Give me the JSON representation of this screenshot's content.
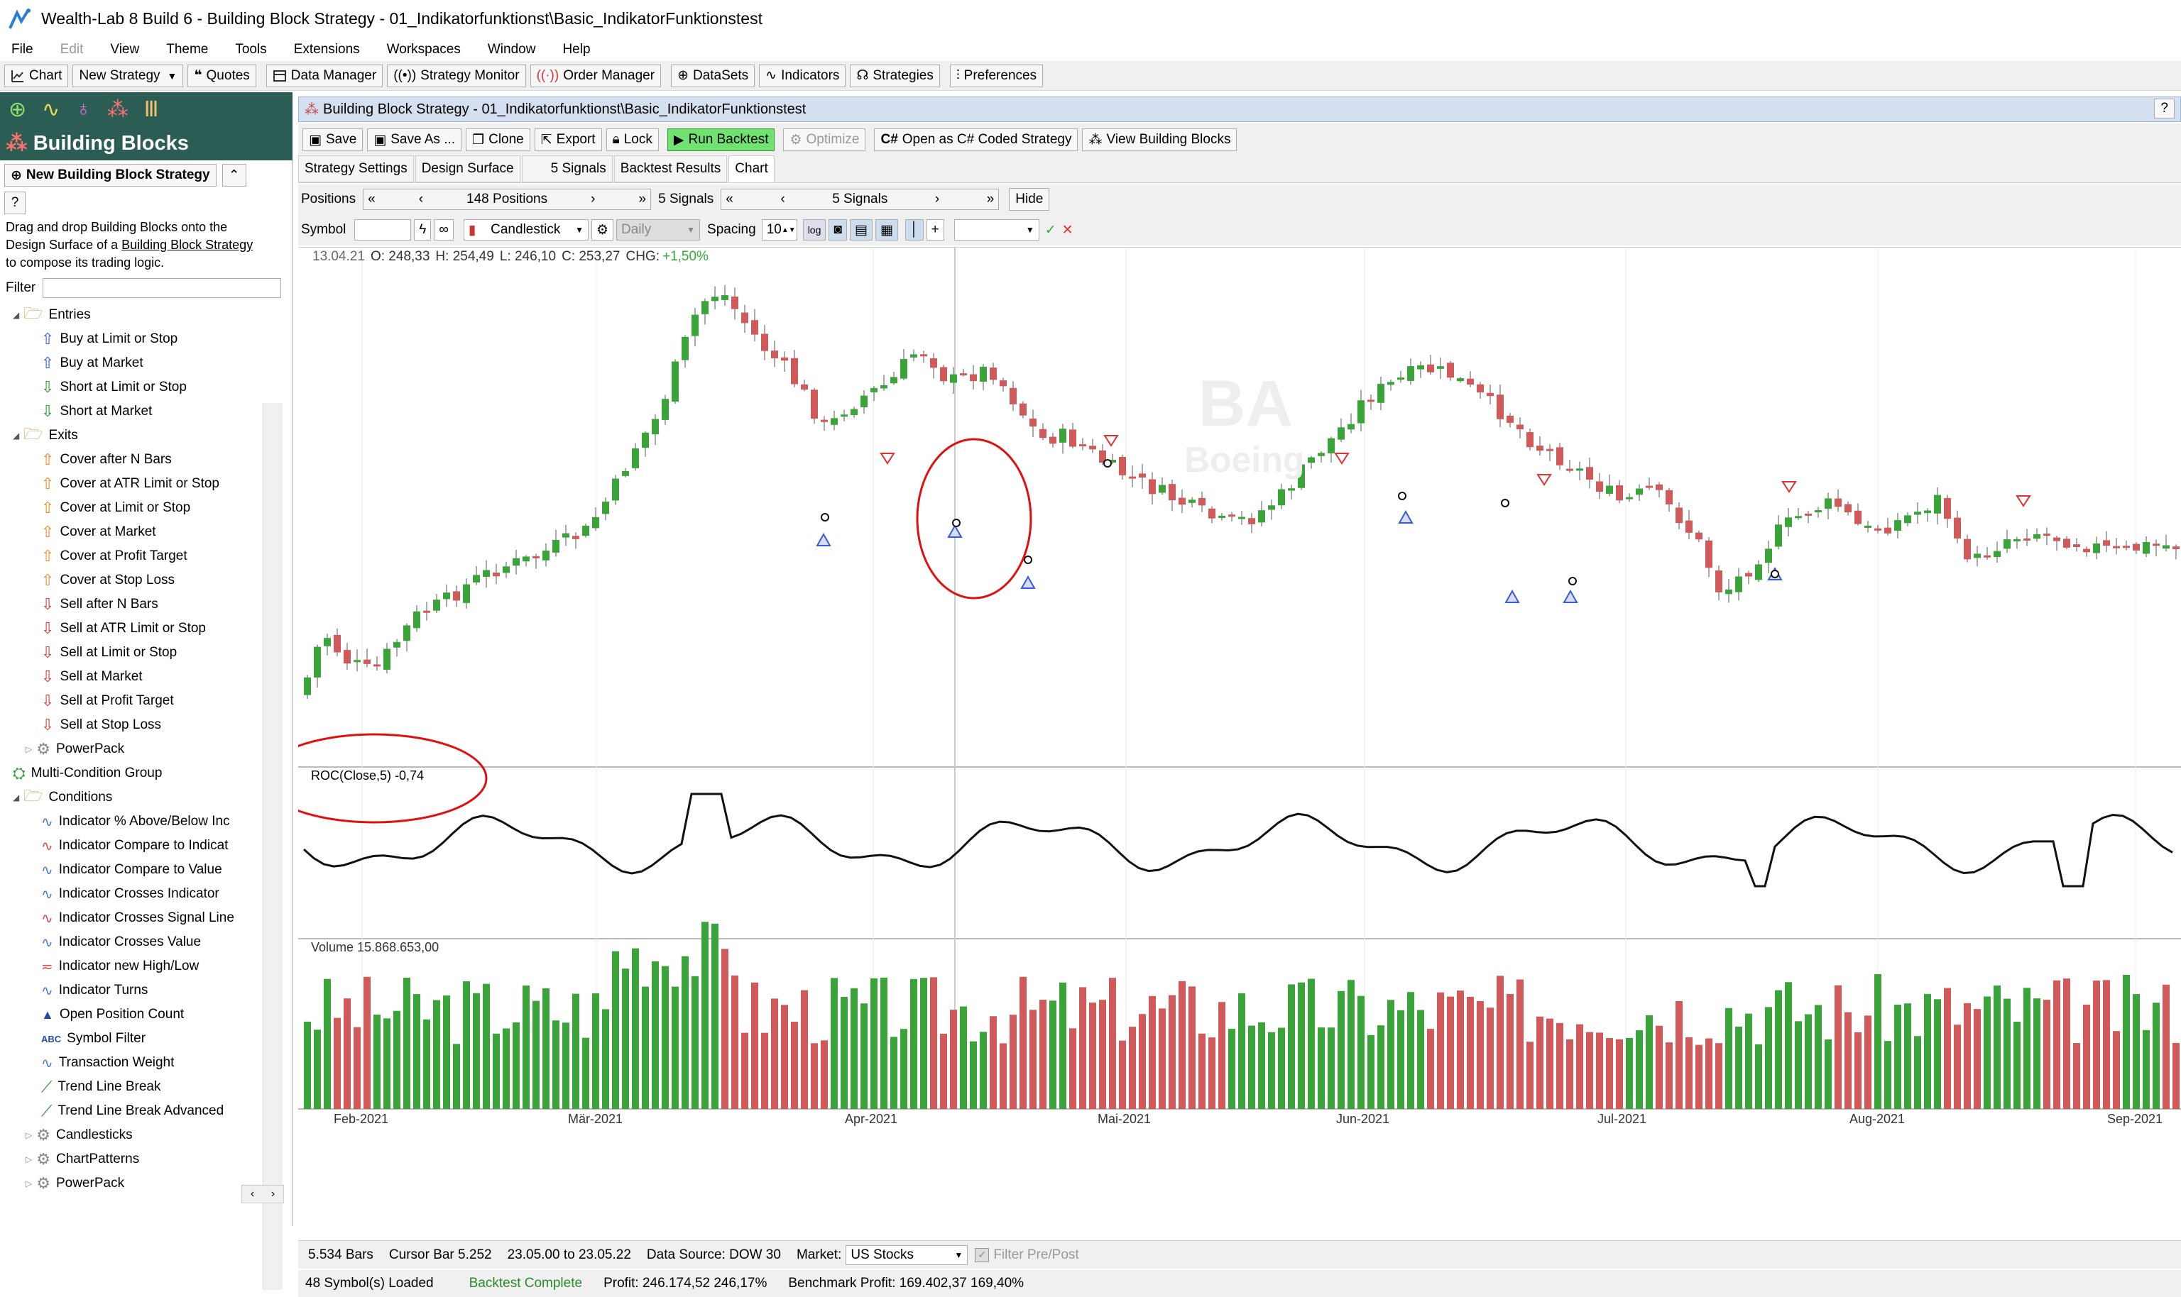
{
  "app": {
    "title": "Wealth-Lab 8 Build 6 - Building Block Strategy - 01_Indikatorfunktionst\\Basic_IndikatorFunktionstest"
  },
  "menu": [
    "File",
    "Edit",
    "View",
    "Theme",
    "Tools",
    "Extensions",
    "Workspaces",
    "Window",
    "Help"
  ],
  "toolbar": {
    "chart": "Chart",
    "new_strategy": "New Strategy",
    "quotes": "Quotes",
    "data_manager": "Data Manager",
    "strategy_monitor": "Strategy Monitor",
    "order_manager": "Order Manager",
    "datasets": "DataSets",
    "indicators": "Indicators",
    "strategies": "Strategies",
    "preferences": "Preferences"
  },
  "left": {
    "header": "Building Blocks",
    "new_button": "New Building Block Strategy",
    "help": "?",
    "desc_1": "Drag and drop Building Blocks onto the",
    "desc_2a": "Design Surface of a ",
    "desc_2b": "Building Block Strategy",
    "desc_3": "to compose its trading logic.",
    "filter_label": "Filter",
    "tree": [
      {
        "label": "Entries",
        "type": "folder",
        "level": 0
      },
      {
        "label": "Buy at Limit or Stop",
        "type": "up",
        "level": 1
      },
      {
        "label": "Buy at Market",
        "type": "up",
        "level": 1
      },
      {
        "label": "Short at Limit or Stop",
        "type": "sdown",
        "level": 1
      },
      {
        "label": "Short at Market",
        "type": "sdown",
        "level": 1
      },
      {
        "label": "Exits",
        "type": "folder",
        "level": 0
      },
      {
        "label": "Cover after N Bars",
        "type": "oup",
        "level": 1
      },
      {
        "label": "Cover at ATR Limit or Stop",
        "type": "oup",
        "level": 1
      },
      {
        "label": "Cover at Limit or Stop",
        "type": "oup",
        "level": 1
      },
      {
        "label": "Cover at Market",
        "type": "oup",
        "level": 1
      },
      {
        "label": "Cover at Profit Target",
        "type": "oup",
        "level": 1
      },
      {
        "label": "Cover at Stop Loss",
        "type": "oup",
        "level": 1
      },
      {
        "label": "Sell after N Bars",
        "type": "down",
        "level": 1
      },
      {
        "label": "Sell at ATR Limit or Stop",
        "type": "down",
        "level": 1
      },
      {
        "label": "Sell at Limit or Stop",
        "type": "down",
        "level": 1
      },
      {
        "label": "Sell at Market",
        "type": "down",
        "level": 1
      },
      {
        "label": "Sell at Profit Target",
        "type": "down",
        "level": 1
      },
      {
        "label": "Sell at Stop Loss",
        "type": "down",
        "level": 1
      },
      {
        "label": "PowerPack",
        "type": "gear",
        "level": 1
      },
      {
        "label": "Multi-Condition Group",
        "type": "group",
        "level": 0
      },
      {
        "label": "Conditions",
        "type": "folder",
        "level": 0
      },
      {
        "label": "Indicator % Above/Below Inc",
        "type": "cond",
        "level": 1
      },
      {
        "label": "Indicator Compare to Indicat",
        "type": "cond2",
        "level": 1
      },
      {
        "label": "Indicator Compare to Value",
        "type": "cond",
        "level": 1
      },
      {
        "label": "Indicator Crosses Indicator",
        "type": "cond",
        "level": 1
      },
      {
        "label": "Indicator Crosses Signal Line",
        "type": "cond2",
        "level": 1
      },
      {
        "label": "Indicator Crosses Value",
        "type": "cond",
        "level": 1
      },
      {
        "label": "Indicator new High/Low",
        "type": "cond3",
        "level": 1
      },
      {
        "label": "Indicator Turns",
        "type": "cond",
        "level": 1
      },
      {
        "label": "Open Position Count",
        "type": "tri",
        "level": 1
      },
      {
        "label": "Symbol Filter",
        "type": "abc",
        "level": 1
      },
      {
        "label": "Transaction Weight",
        "type": "cond",
        "level": 1
      },
      {
        "label": "Trend Line Break",
        "type": "trend",
        "level": 1
      },
      {
        "label": "Trend Line Break Advanced",
        "type": "trend",
        "level": 1
      },
      {
        "label": "Candlesticks",
        "type": "gear",
        "level": 1
      },
      {
        "label": "ChartPatterns",
        "type": "gear",
        "level": 1
      },
      {
        "label": "PowerPack",
        "type": "gear",
        "level": 1
      }
    ]
  },
  "doc": {
    "title": "Building Block Strategy - 01_Indikatorfunktionst\\Basic_IndikatorFunktionstest",
    "help": "?"
  },
  "doctb": {
    "save": "Save",
    "save_as": "Save As ...",
    "clone": "Clone",
    "export": "Export",
    "lock": "Lock",
    "run": "Run Backtest",
    "optimize": "Optimize",
    "csharp": "Open as C# Coded Strategy",
    "view_bb": "View Building Blocks"
  },
  "tabs": [
    "Strategy Settings",
    "Design Surface",
    "5 Signals",
    "Backtest Results",
    "Chart"
  ],
  "posbar": {
    "positions_label": "Positions",
    "positions_value": "148 Positions",
    "signals_label": "5 Signals",
    "signals_value": "5 Signals",
    "hide": "Hide"
  },
  "symbar": {
    "symbol_label": "Symbol",
    "chart_style": "Candlestick",
    "scale": "Daily",
    "spacing_label": "Spacing",
    "spacing_value": "10"
  },
  "chart": {
    "ohlc_date": "13.04.21",
    "ohlc_o": "O: 248,33",
    "ohlc_h": "H: 254,49",
    "ohlc_l": "L: 246,10",
    "ohlc_c": "C: 253,27",
    "ohlc_chg_label": "CHG:",
    "ohlc_chg": "+1,50%",
    "watermark_sym": "BA",
    "watermark_name": "Boeing",
    "roc_label": "ROC(Close,5) -0,74",
    "vol_label": "Volume 15.868.653,00",
    "months": [
      "Feb-2021",
      "Mär-2021",
      "Apr-2021",
      "Mai-2021",
      "Jun-2021",
      "Jul-2021",
      "Aug-2021",
      "Sep-2021"
    ],
    "colors": {
      "up": "#3aa33a",
      "down": "#d05a5a",
      "annotation": "#e01010"
    }
  },
  "status1": {
    "bars": "5.534 Bars",
    "cursor": "Cursor Bar 5.252",
    "range": "23.05.00 to 23.05.22",
    "source": "Data Source: DOW 30",
    "market_label": "Market:",
    "market_value": "US Stocks",
    "filter": "Filter Pre/Post"
  },
  "status2": {
    "loaded": "48 Symbol(s) Loaded",
    "complete": "Backtest Complete",
    "profit": "Profit: 246.174,52 246,17%",
    "bench": "Benchmark Profit: 169.402,37 169,40%"
  }
}
